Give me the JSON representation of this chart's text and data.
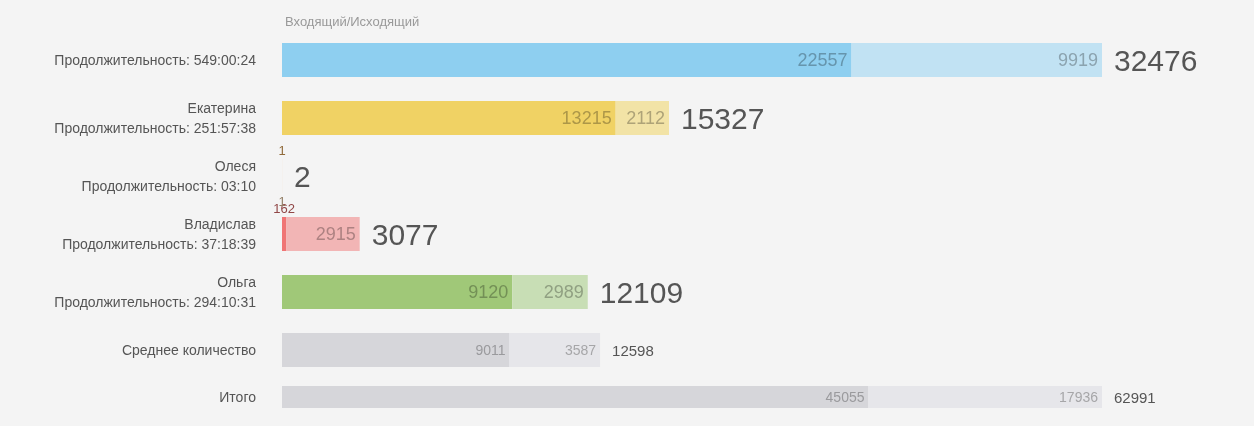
{
  "chart_data": [
    {
      "type": "bar",
      "orientation": "horizontal",
      "stacked": true,
      "title": "Входящий/Исходящий",
      "categories": [
        "Продолжительность: 549:00:24",
        "Екатерина\nПродолжительность: 251:57:38",
        "Олеся\nПродолжительность: 03:10",
        "Владислав\nПродолжительность: 37:18:39",
        "Ольга\nПродолжительность: 294:10:31",
        "Среднее количество"
      ],
      "series": [
        {
          "values": [
            22557,
            13215,
            1,
            162,
            9120,
            9011
          ],
          "colors": [
            "#8ecff0",
            "#f0d264",
            "#f0b060",
            "#f07575",
            "#a0c878",
            "#d6d6da"
          ]
        },
        {
          "values": [
            9919,
            2112,
            1,
            2915,
            2989,
            3587
          ],
          "colors": [
            "#c1e2f3",
            "#f2e3a6",
            "#f3d2aa",
            "#f2b5b5",
            "#c8deb5",
            "#e6e6ea"
          ]
        }
      ],
      "totals": [
        "32476",
        "15327",
        "2",
        "3077",
        "12109",
        "12598"
      ],
      "data_labels": true
    },
    {
      "type": "bar",
      "orientation": "horizontal",
      "stacked": true,
      "categories": [
        "Итого"
      ],
      "series": [
        {
          "values": [
            45055
          ],
          "colors": [
            "#d6d6da"
          ]
        },
        {
          "values": [
            17936
          ],
          "colors": [
            "#e6e6ea"
          ]
        }
      ],
      "totals": [
        "62991"
      ],
      "data_labels": true
    }
  ]
}
